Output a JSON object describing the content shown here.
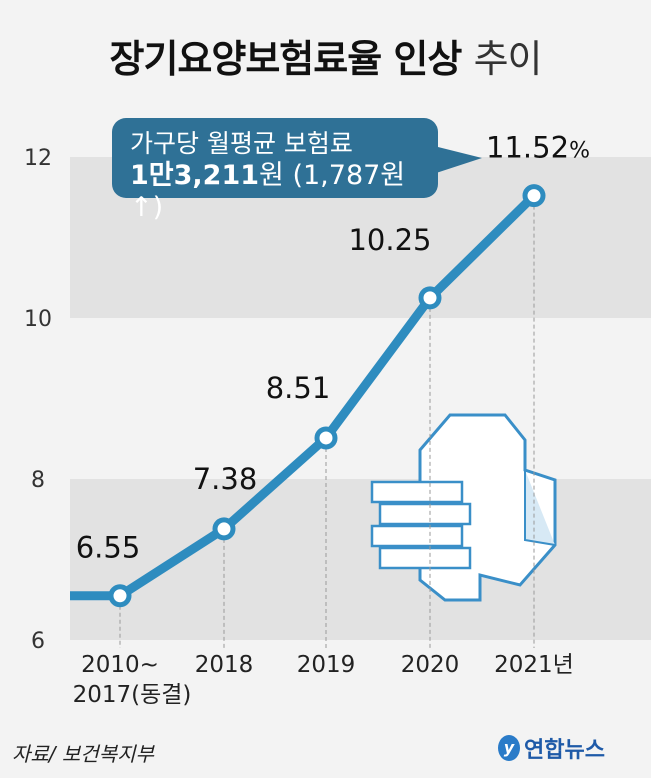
{
  "title_bold": "장기요양보험료율 인상",
  "title_light": "추이",
  "callout": {
    "line1": "가구당 월평균 보험료",
    "amount": "1만3,211",
    "unit": "원",
    "change": "(1,787원",
    "arrow": "↑",
    ")": ")",
    "close": ")"
  },
  "source": "자료/ 보건복지부",
  "logo": "연합뉴스",
  "colors": {
    "line": "#2e8cbf",
    "band": "#e2e2e2",
    "bubble": "#2f7196"
  },
  "chart_data": {
    "type": "line",
    "title": "장기요양보험료율 인상 추이",
    "unit": "%",
    "categories": [
      "2010~\n2017(동결)",
      "2018",
      "2019",
      "2020",
      "2021년"
    ],
    "category_lines": [
      [
        "2010~",
        "2017(동결)"
      ],
      [
        "2018"
      ],
      [
        "2019"
      ],
      [
        "2020"
      ],
      [
        "2021년"
      ]
    ],
    "values": [
      6.55,
      7.38,
      8.51,
      10.25,
      11.52
    ],
    "labels": [
      "6.55",
      "7.38",
      "8.51",
      "10.25",
      "11.52"
    ],
    "last_suffix": "%",
    "yticks": [
      "6",
      "8",
      "10",
      "12"
    ],
    "ylim": [
      6,
      12
    ]
  }
}
